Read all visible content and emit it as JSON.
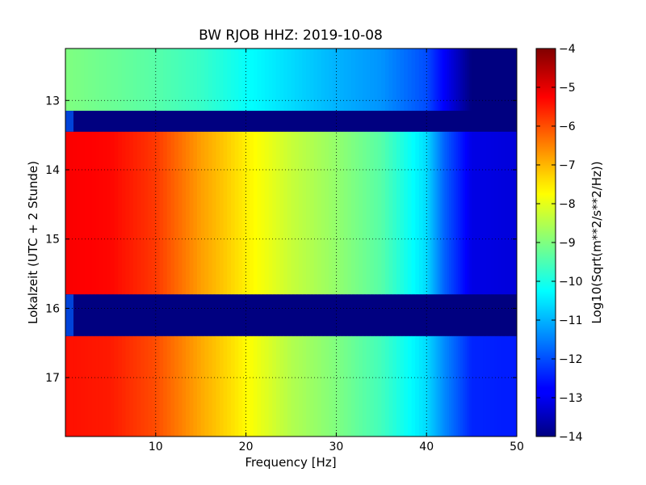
{
  "chart_data": {
    "type": "heatmap",
    "title": "BW RJOB HHZ: 2019-10-08",
    "xlabel": "Frequency [Hz]",
    "ylabel": "Lokalzeit (UTC + 2 Stunde)",
    "colorbar_label": "Log10(Sqrt(m**2/s**2/Hz))",
    "colormap": "jet",
    "xlim": [
      0,
      50
    ],
    "ylim": [
      12.25,
      17.85
    ],
    "y_inverted": true,
    "clim": [
      -14,
      -4
    ],
    "grid": true,
    "x_ticks": [
      10,
      20,
      30,
      40,
      50
    ],
    "x_tick_labels": [
      "10",
      "20",
      "30",
      "40",
      "50"
    ],
    "y_ticks": [
      13,
      14,
      15,
      16,
      17
    ],
    "y_tick_labels": [
      "13",
      "14",
      "15",
      "16",
      "17"
    ],
    "colorbar_ticks": [
      -4,
      -5,
      -6,
      -7,
      -8,
      -9,
      -10,
      -11,
      -12,
      -13,
      -14
    ],
    "colorbar_tick_labels": [
      "−4",
      "−5",
      "−6",
      "−7",
      "−8",
      "−9",
      "−10",
      "−11",
      "−12",
      "−13",
      "−14"
    ],
    "data_gaps_hours": [
      [
        13.15,
        13.45
      ],
      [
        15.8,
        16.4
      ]
    ],
    "time_bands": [
      {
        "start_hour": 12.25,
        "end_hour": 13.15,
        "frequency_hz": [
          0,
          5,
          10,
          15,
          20,
          25,
          30,
          35,
          40,
          42,
          45,
          50
        ],
        "log10_amplitude": [
          -9.0,
          -9.2,
          -9.4,
          -9.7,
          -10.2,
          -10.6,
          -11.0,
          -11.3,
          -12.0,
          -12.8,
          -14.0,
          -14.0
        ]
      },
      {
        "start_hour": 13.45,
        "end_hour": 15.8,
        "frequency_hz": [
          0,
          5,
          10,
          15,
          20,
          25,
          30,
          35,
          40,
          42,
          45,
          50
        ],
        "log10_amplitude": [
          -5.2,
          -5.3,
          -5.8,
          -6.8,
          -7.6,
          -8.3,
          -8.8,
          -9.4,
          -10.6,
          -11.8,
          -13.0,
          -13.1
        ]
      },
      {
        "start_hour": 16.4,
        "end_hour": 17.85,
        "frequency_hz": [
          0,
          5,
          10,
          15,
          20,
          25,
          30,
          35,
          40,
          42,
          45,
          50
        ],
        "log10_amplitude": [
          -5.4,
          -5.5,
          -6.0,
          -6.9,
          -7.7,
          -8.5,
          -9.0,
          -9.6,
          -10.6,
          -11.4,
          -12.4,
          -12.5
        ]
      }
    ],
    "gap_level_log10_amplitude": -14.0
  }
}
